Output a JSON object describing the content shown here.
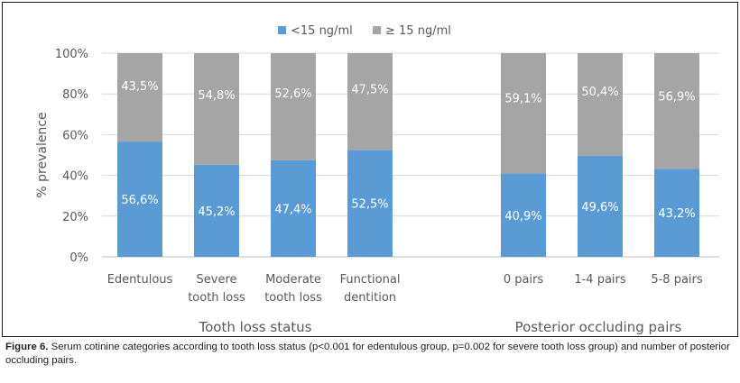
{
  "chart_data": {
    "type": "bar",
    "stacked": true,
    "percent_stacked": true,
    "ylabel": "% prevalence",
    "ylim": [
      0,
      100
    ],
    "yticks": [
      "0%",
      "20%",
      "40%",
      "60%",
      "80%",
      "100%"
    ],
    "grid": true,
    "legend_position": "top-center",
    "series": [
      {
        "name": "<15 ng/ml",
        "color": "#5b9bd5",
        "values": [
          56.6,
          45.2,
          47.4,
          52.5,
          40.9,
          49.6,
          43.2
        ],
        "labels": [
          "56,6%",
          "45,2%",
          "47,4%",
          "52,5%",
          "40,9%",
          "49,6%",
          "43,2%"
        ]
      },
      {
        "name": "≥ 15 ng/ml",
        "color": "#a5a5a5",
        "values": [
          43.5,
          54.8,
          52.6,
          47.5,
          59.1,
          50.4,
          56.9
        ],
        "labels": [
          "43,5%",
          "54,8%",
          "52,6%",
          "47,5%",
          "59,1%",
          "50,4%",
          "56,9%"
        ]
      }
    ],
    "categories": [
      {
        "lines": [
          "Edentulous"
        ],
        "group": 0
      },
      {
        "lines": [
          "Severe",
          "tooth loss"
        ],
        "group": 0
      },
      {
        "lines": [
          "Moderate",
          "tooth loss"
        ],
        "group": 0
      },
      {
        "lines": [
          "Functional",
          "dentition"
        ],
        "group": 0
      },
      {
        "lines": [
          "0 pairs"
        ],
        "group": 1
      },
      {
        "lines": [
          "1-4 pairs"
        ],
        "group": 1
      },
      {
        "lines": [
          "5-8 pairs"
        ],
        "group": 1
      }
    ],
    "groups": [
      "Tooth loss status",
      "Posterior occluding pairs"
    ]
  },
  "caption": {
    "label": "Figure 6.",
    "text": " Serum cotinine categories according to tooth loss status (p<0.001 for edentulous group, p=0.002 for severe tooth loss group) and number of posterior occluding pairs."
  }
}
